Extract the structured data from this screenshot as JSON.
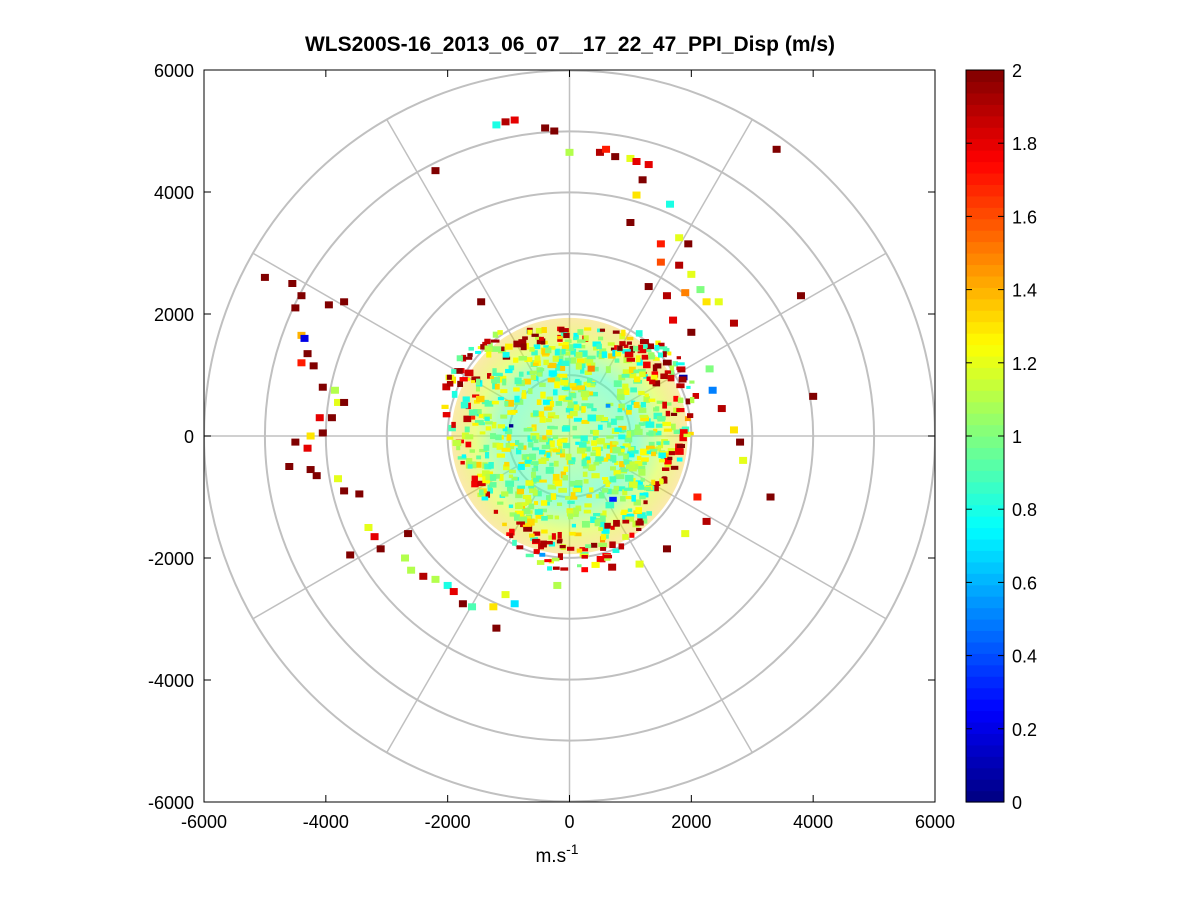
{
  "chart_data": {
    "type": "heatmap",
    "subtype": "polar-ppi-scatter",
    "title": "WLS200S-16_2013_06_07__17_22_47_PPI_Disp (m/s)",
    "xlabel": "m.s",
    "xlabel_superscript": "-1",
    "ylabel": "",
    "xlim": [
      -6000,
      6000
    ],
    "ylim": [
      -6000,
      6000
    ],
    "x_ticks": [
      -6000,
      -4000,
      -2000,
      0,
      2000,
      4000,
      6000
    ],
    "y_ticks": [
      -6000,
      -4000,
      -2000,
      0,
      2000,
      4000,
      6000
    ],
    "x_tick_labels": [
      "-6000",
      "-4000",
      "-2000",
      "0",
      "2000",
      "4000",
      "6000"
    ],
    "y_tick_labels": [
      "6000",
      "4000",
      "2000",
      "0",
      "-2000",
      "-4000",
      "-6000"
    ],
    "grid": "polar",
    "polar_rings": [
      1000,
      2000,
      3000,
      4000,
      5000,
      6000
    ],
    "polar_spokes_deg": [
      0,
      30,
      60,
      90,
      120,
      150,
      180,
      210,
      240,
      270,
      300,
      330
    ],
    "colorbar": {
      "colormap": "jet",
      "range": [
        0,
        2
      ],
      "ticks": [
        0,
        0.2,
        0.4,
        0.6,
        0.8,
        1,
        1.2,
        1.4,
        1.6,
        1.8,
        2
      ],
      "tick_labels": [
        "0",
        "0.2",
        "0.4",
        "0.6",
        "0.8",
        "1",
        "1.2",
        "1.4",
        "1.6",
        "1.8",
        "2"
      ],
      "location": "right"
    },
    "dense_region": {
      "center": [
        0,
        0
      ],
      "radius": 2000,
      "typical_value": 1.0
    },
    "scatter_points": [
      {
        "x": -1200,
        "y": 5100,
        "v": 0.8
      },
      {
        "x": -1050,
        "y": 5150,
        "v": 1.9
      },
      {
        "x": -900,
        "y": 5180,
        "v": 1.8
      },
      {
        "x": -400,
        "y": 5050,
        "v": 2.0
      },
      {
        "x": -250,
        "y": 5000,
        "v": 2.0
      },
      {
        "x": 0,
        "y": 4650,
        "v": 1.1
      },
      {
        "x": 500,
        "y": 4650,
        "v": 1.9
      },
      {
        "x": 600,
        "y": 4700,
        "v": 1.7
      },
      {
        "x": 750,
        "y": 4580,
        "v": 2.0
      },
      {
        "x": 1000,
        "y": 4550,
        "v": 1.2
      },
      {
        "x": 1100,
        "y": 4500,
        "v": 1.8
      },
      {
        "x": 1300,
        "y": 4450,
        "v": 1.8
      },
      {
        "x": 1200,
        "y": 4200,
        "v": 2.0
      },
      {
        "x": 1100,
        "y": 3950,
        "v": 1.3
      },
      {
        "x": 1650,
        "y": 3800,
        "v": 0.8
      },
      {
        "x": 1000,
        "y": 3500,
        "v": 2.0
      },
      {
        "x": 1500,
        "y": 3150,
        "v": 1.7
      },
      {
        "x": 1800,
        "y": 3250,
        "v": 1.2
      },
      {
        "x": 1950,
        "y": 3150,
        "v": 2.0
      },
      {
        "x": 1500,
        "y": 2850,
        "v": 1.6
      },
      {
        "x": 1800,
        "y": 2800,
        "v": 1.9
      },
      {
        "x": 2000,
        "y": 2650,
        "v": 1.2
      },
      {
        "x": 2150,
        "y": 2400,
        "v": 1.0
      },
      {
        "x": 2250,
        "y": 2200,
        "v": 1.3
      },
      {
        "x": 1300,
        "y": 2450,
        "v": 2.0
      },
      {
        "x": 1600,
        "y": 2300,
        "v": 1.9
      },
      {
        "x": 1900,
        "y": 2350,
        "v": 1.5
      },
      {
        "x": 2450,
        "y": 2200,
        "v": 1.2
      },
      {
        "x": 2700,
        "y": 1850,
        "v": 1.9
      },
      {
        "x": 1700,
        "y": 1900,
        "v": 1.8
      },
      {
        "x": 2000,
        "y": 1700,
        "v": 2.0
      },
      {
        "x": 2300,
        "y": 1100,
        "v": 1.0
      },
      {
        "x": 2350,
        "y": 750,
        "v": 0.5
      },
      {
        "x": 2500,
        "y": 450,
        "v": 1.9
      },
      {
        "x": 2700,
        "y": 100,
        "v": 1.3
      },
      {
        "x": 2800,
        "y": -100,
        "v": 2.0
      },
      {
        "x": 2850,
        "y": -400,
        "v": 1.2
      },
      {
        "x": 2100,
        "y": -1000,
        "v": 1.7
      },
      {
        "x": 2250,
        "y": -1400,
        "v": 1.9
      },
      {
        "x": 1900,
        "y": -1600,
        "v": 1.2
      },
      {
        "x": 1600,
        "y": -1850,
        "v": 2.0
      },
      {
        "x": 1150,
        "y": -2100,
        "v": 1.2
      },
      {
        "x": 700,
        "y": -2150,
        "v": 1.9
      },
      {
        "x": 3400,
        "y": 4700,
        "v": 2.0
      },
      {
        "x": 3800,
        "y": 2300,
        "v": 2.0
      },
      {
        "x": 4000,
        "y": 650,
        "v": 2.0
      },
      {
        "x": 3300,
        "y": -1000,
        "v": 2.0
      },
      {
        "x": -2200,
        "y": 4350,
        "v": 2.0
      },
      {
        "x": -1450,
        "y": 2200,
        "v": 2.0
      },
      {
        "x": -5000,
        "y": 2600,
        "v": 2.0
      },
      {
        "x": -4550,
        "y": 2500,
        "v": 2.0
      },
      {
        "x": -4400,
        "y": 2300,
        "v": 2.0
      },
      {
        "x": -4500,
        "y": 2100,
        "v": 2.0
      },
      {
        "x": -3950,
        "y": 2150,
        "v": 2.0
      },
      {
        "x": -3700,
        "y": 2200,
        "v": 2.0
      },
      {
        "x": -4400,
        "y": 1650,
        "v": 1.4
      },
      {
        "x": -4350,
        "y": 1600,
        "v": 0.2
      },
      {
        "x": -4300,
        "y": 1350,
        "v": 2.0
      },
      {
        "x": -4400,
        "y": 1200,
        "v": 1.7
      },
      {
        "x": -4200,
        "y": 1150,
        "v": 2.0
      },
      {
        "x": -4050,
        "y": 800,
        "v": 2.0
      },
      {
        "x": -3850,
        "y": 750,
        "v": 1.1
      },
      {
        "x": -3800,
        "y": 550,
        "v": 1.2
      },
      {
        "x": -3700,
        "y": 550,
        "v": 2.0
      },
      {
        "x": -4100,
        "y": 300,
        "v": 1.8
      },
      {
        "x": -3900,
        "y": 300,
        "v": 2.0
      },
      {
        "x": -4050,
        "y": 50,
        "v": 2.0
      },
      {
        "x": -4250,
        "y": 0,
        "v": 1.3
      },
      {
        "x": -4500,
        "y": -100,
        "v": 2.0
      },
      {
        "x": -4300,
        "y": -200,
        "v": 1.8
      },
      {
        "x": -4600,
        "y": -500,
        "v": 2.0
      },
      {
        "x": -4250,
        "y": -550,
        "v": 2.0
      },
      {
        "x": -4150,
        "y": -650,
        "v": 2.0
      },
      {
        "x": -3800,
        "y": -700,
        "v": 1.2
      },
      {
        "x": -3700,
        "y": -900,
        "v": 2.0
      },
      {
        "x": -3450,
        "y": -950,
        "v": 2.0
      },
      {
        "x": -3300,
        "y": -1500,
        "v": 1.2
      },
      {
        "x": -3200,
        "y": -1650,
        "v": 1.8
      },
      {
        "x": -3100,
        "y": -1850,
        "v": 2.0
      },
      {
        "x": -2650,
        "y": -1600,
        "v": 2.0
      },
      {
        "x": -3600,
        "y": -1950,
        "v": 2.0
      },
      {
        "x": -2700,
        "y": -2000,
        "v": 1.1
      },
      {
        "x": -2600,
        "y": -2200,
        "v": 1.1
      },
      {
        "x": -2400,
        "y": -2300,
        "v": 1.9
      },
      {
        "x": -2200,
        "y": -2350,
        "v": 1.1
      },
      {
        "x": -2000,
        "y": -2450,
        "v": 0.8
      },
      {
        "x": -1900,
        "y": -2550,
        "v": 1.8
      },
      {
        "x": -1750,
        "y": -2750,
        "v": 2.0
      },
      {
        "x": -1600,
        "y": -2800,
        "v": 0.9
      },
      {
        "x": -1250,
        "y": -2800,
        "v": 1.3
      },
      {
        "x": -1050,
        "y": -2600,
        "v": 1.2
      },
      {
        "x": -900,
        "y": -2750,
        "v": 0.7
      },
      {
        "x": -1200,
        "y": -3150,
        "v": 2.0
      },
      {
        "x": -200,
        "y": -2450,
        "v": 1.1
      }
    ]
  }
}
